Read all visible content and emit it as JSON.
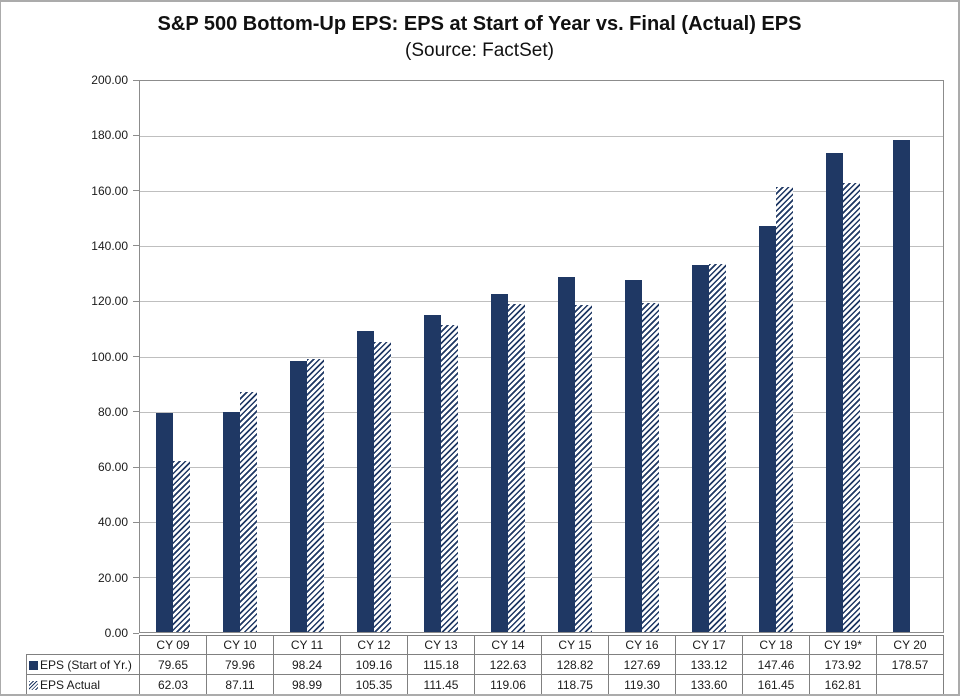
{
  "chart_data": {
    "type": "bar",
    "title": "S&P 500 Bottom-Up EPS: EPS at Start of Year vs. Final (Actual) EPS",
    "subtitle": "(Source: FactSet)",
    "categories": [
      "CY 09",
      "CY 10",
      "CY 11",
      "CY 12",
      "CY 13",
      "CY 14",
      "CY 15",
      "CY 16",
      "CY 17",
      "CY 18",
      "CY 19*",
      "CY 20"
    ],
    "series": [
      {
        "name": "EPS (Start of Yr.)",
        "marker": "solid-square-icon",
        "style": "solid",
        "values": [
          79.65,
          79.96,
          98.24,
          109.16,
          115.18,
          122.63,
          128.82,
          127.69,
          133.12,
          147.46,
          173.92,
          178.57
        ]
      },
      {
        "name": "EPS Actual",
        "marker": "hatch-square-icon",
        "style": "hatch",
        "values": [
          62.03,
          87.11,
          98.99,
          105.35,
          111.45,
          119.06,
          118.75,
          119.3,
          133.6,
          161.45,
          162.81,
          null
        ]
      }
    ],
    "ylim": [
      0,
      200
    ],
    "ytick_step": 20,
    "yticks": [
      "200.00",
      "180.00",
      "160.00",
      "140.00",
      "120.00",
      "100.00",
      "80.00",
      "60.00",
      "40.00",
      "20.00",
      "0.00"
    ],
    "grid": "horizontal",
    "legend_position": "table-left",
    "colors": {
      "bar_navy": "#1F3864",
      "gridline": "#BFBFBF",
      "axis_border": "#8C8C8C",
      "table_border": "#808080",
      "text": "#1A1A1A"
    }
  }
}
